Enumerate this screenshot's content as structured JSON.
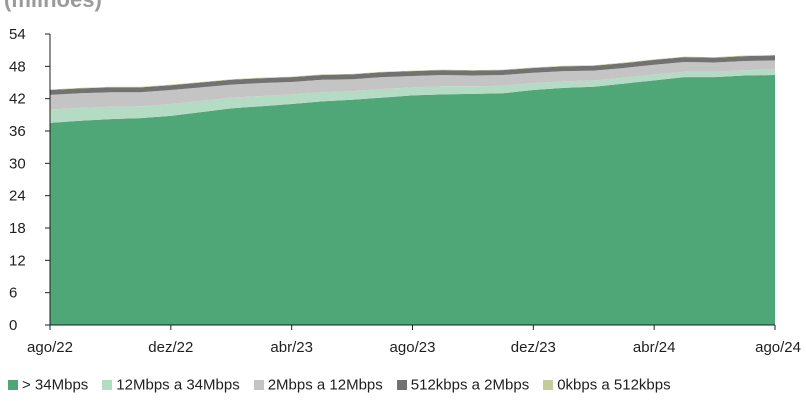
{
  "title": "(milhões)",
  "chart_data": {
    "type": "area",
    "stacked": true,
    "title": "(milhões)",
    "xlabel": "",
    "ylabel": "",
    "ylim": [
      0,
      54
    ],
    "yticks": [
      0,
      6,
      12,
      18,
      24,
      30,
      36,
      42,
      48,
      54
    ],
    "x_tick_labels": [
      "ago/22",
      "dez/22",
      "abr/23",
      "ago/23",
      "dez/23",
      "abr/24",
      "ago/24"
    ],
    "x": [
      "ago/22",
      "set/22",
      "out/22",
      "nov/22",
      "dez/22",
      "jan/23",
      "fev/23",
      "mar/23",
      "abr/23",
      "mai/23",
      "jun/23",
      "jul/23",
      "ago/23",
      "set/23",
      "out/23",
      "nov/23",
      "dez/23",
      "jan/24",
      "fev/24",
      "mar/24",
      "abr/24",
      "mai/24",
      "jun/24",
      "jul/24",
      "ago/24"
    ],
    "grid": false,
    "legend_position": "bottom",
    "series": [
      {
        "name": "> 34Mbps",
        "color": "#4fa676",
        "values": [
          37.5,
          37.9,
          38.2,
          38.4,
          38.8,
          39.5,
          40.2,
          40.6,
          41.0,
          41.5,
          41.8,
          42.2,
          42.6,
          42.8,
          42.9,
          43.0,
          43.6,
          44.0,
          44.2,
          44.8,
          45.4,
          46.0,
          46.0,
          46.3,
          46.4
        ]
      },
      {
        "name": "12Mbps a 34Mbps",
        "color": "#b4dcc4",
        "values": [
          2.5,
          2.4,
          2.3,
          2.2,
          2.2,
          2.1,
          2.0,
          1.9,
          1.8,
          1.7,
          1.6,
          1.6,
          1.5,
          1.5,
          1.4,
          1.4,
          1.3,
          1.2,
          1.2,
          1.1,
          1.1,
          1.0,
          1.0,
          1.0,
          1.0
        ]
      },
      {
        "name": "2Mbps a 12Mbps",
        "color": "#c4c4c4",
        "values": [
          2.7,
          2.7,
          2.7,
          2.6,
          2.6,
          2.5,
          2.4,
          2.4,
          2.3,
          2.3,
          2.2,
          2.2,
          2.1,
          2.1,
          2.0,
          2.0,
          1.9,
          1.9,
          1.8,
          1.8,
          1.8,
          1.8,
          1.7,
          1.7,
          1.7
        ]
      },
      {
        "name": "512kbps a 2Mbps",
        "color": "#727272",
        "values": [
          0.9,
          0.9,
          0.9,
          0.9,
          0.9,
          0.9,
          0.9,
          0.9,
          0.9,
          0.9,
          0.9,
          0.9,
          0.9,
          0.9,
          0.9,
          0.9,
          0.9,
          0.9,
          0.9,
          0.9,
          0.9,
          0.9,
          0.9,
          0.9,
          0.9
        ]
      },
      {
        "name": "0kbps a 512kbps",
        "color": "#c5cb9a",
        "values": [
          0.1,
          0.1,
          0.1,
          0.1,
          0.1,
          0.1,
          0.1,
          0.1,
          0.1,
          0.1,
          0.1,
          0.1,
          0.1,
          0.1,
          0.1,
          0.1,
          0.1,
          0.1,
          0.1,
          0.1,
          0.1,
          0.1,
          0.1,
          0.1,
          0.1
        ]
      }
    ]
  }
}
